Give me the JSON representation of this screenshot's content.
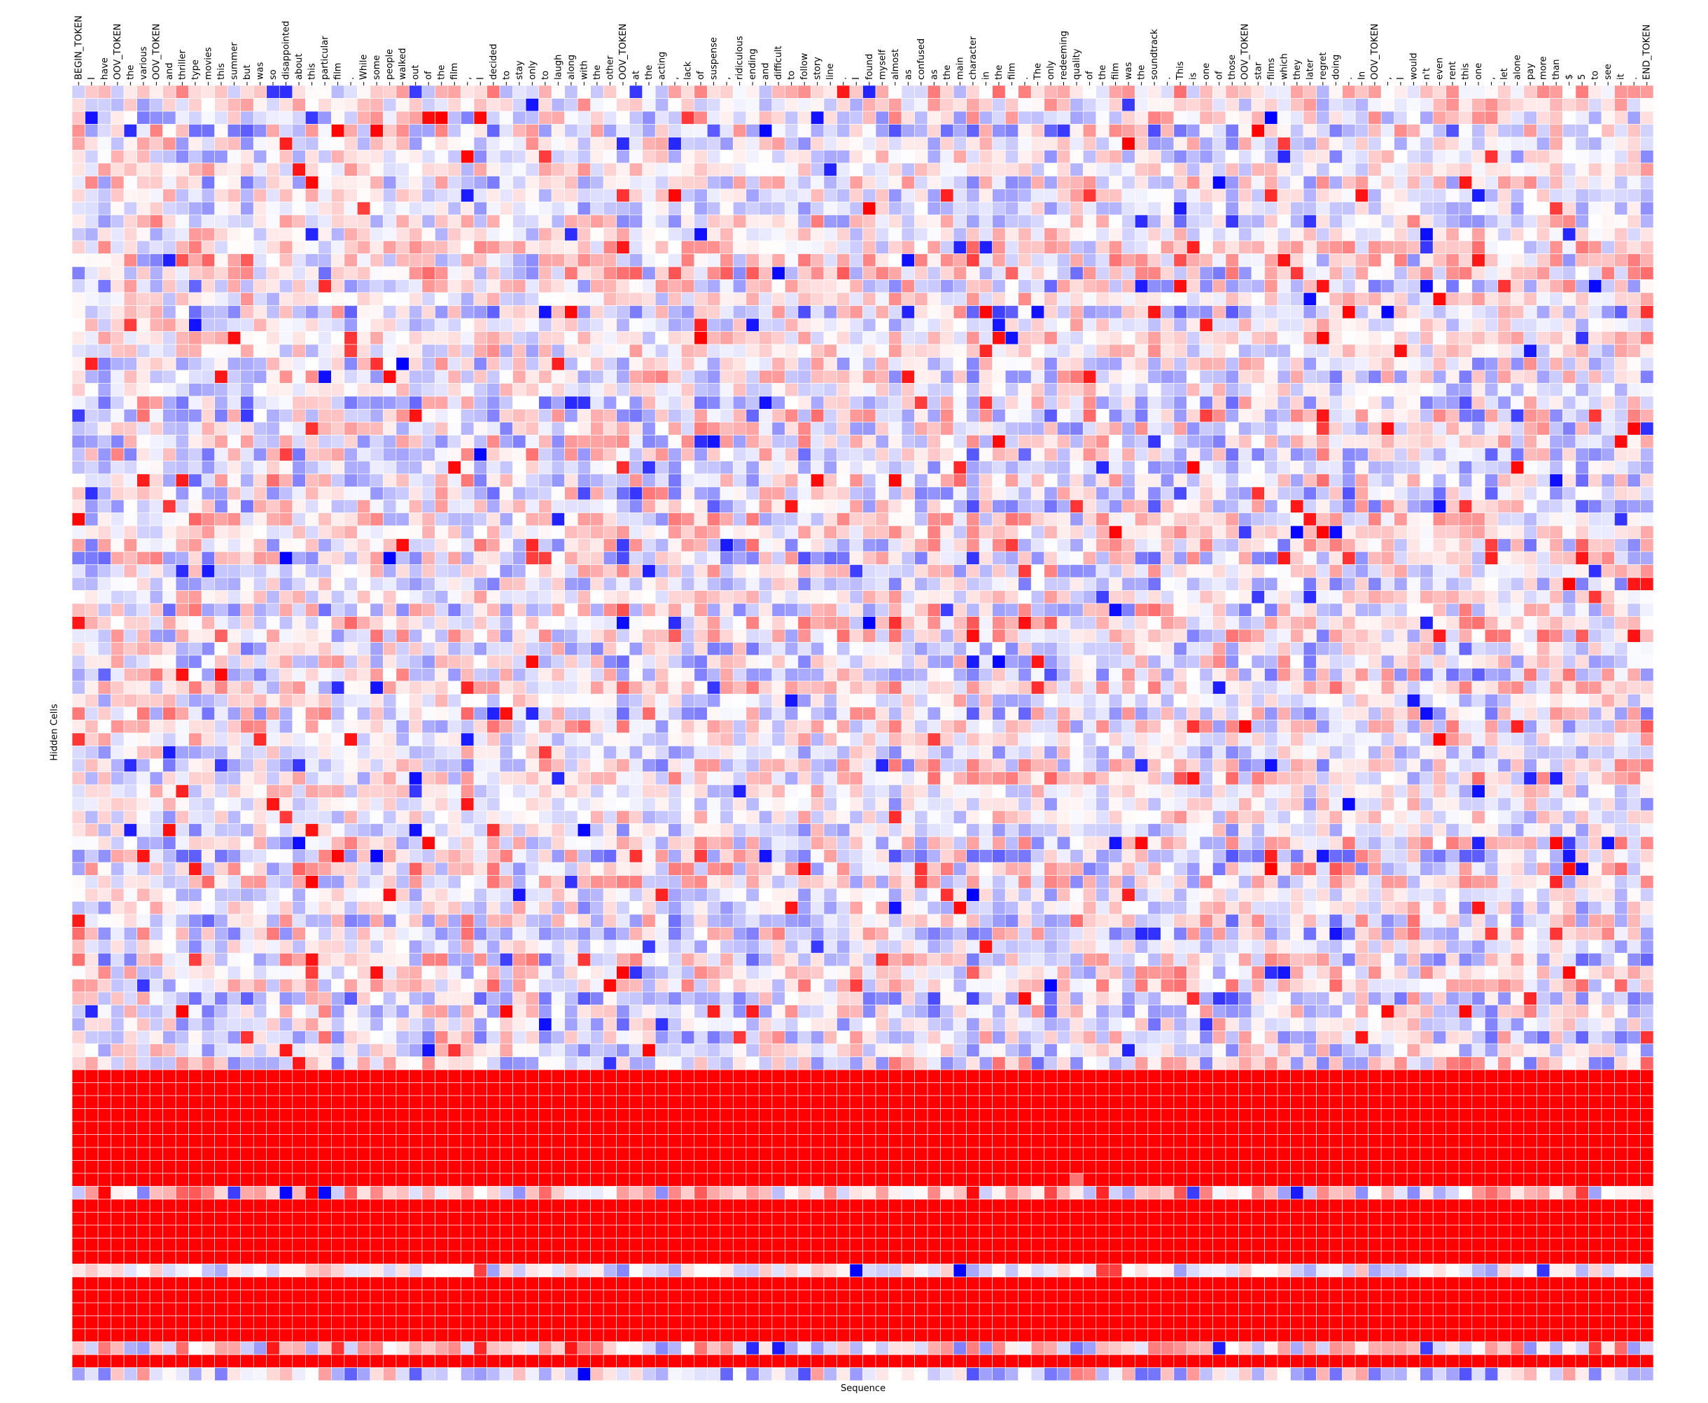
{
  "chart_data": {
    "type": "heatmap",
    "xlabel": "Sequence",
    "ylabel": "Hidden Cells",
    "colormap": "bwr",
    "colors": {
      "negative": "#0000ff",
      "zero": "#ffffff",
      "positive": "#ff0000"
    },
    "value_range": [
      -1,
      1
    ],
    "row_count": 100,
    "x_tokens": [
      "BEGIN_TOKEN",
      "I",
      "have",
      "OOV_TOKEN",
      "the",
      "various",
      "OOV_TOKEN",
      "and",
      "thriller",
      "type",
      "movies",
      "this",
      "summer",
      "but",
      "was",
      "so",
      "disappointed",
      "about",
      "this",
      "particular",
      "film",
      ".",
      "While",
      "some",
      "people",
      "walked",
      "out",
      "of",
      "the",
      "film",
      ",",
      "I",
      "decided",
      "to",
      "stay",
      "only",
      "to",
      "laugh",
      "along",
      "with",
      "the",
      "other",
      "OOV_TOKEN",
      "at",
      "the",
      "acting",
      ",",
      "lack",
      "of",
      "suspense",
      ",",
      "ridiculous",
      "ending",
      "and",
      "difficult",
      "to",
      "follow",
      "story",
      "line",
      ".",
      "I",
      "found",
      "myself",
      "almost",
      "as",
      "confused",
      "as",
      "the",
      "main",
      "character",
      "in",
      "the",
      "film",
      ".",
      "The",
      "only",
      "redeeming",
      "quality",
      "of",
      "the",
      "film",
      "was",
      "the",
      "soundtrack",
      ".",
      "This",
      "is",
      "one",
      "of",
      "those",
      "OOV_TOKEN",
      "star",
      "films",
      "which",
      "they",
      "later",
      "regret",
      "doing",
      ".",
      "In",
      "OOV_TOKEN",
      ",",
      "I",
      "would",
      "n't",
      "even",
      "rent",
      "this",
      "one",
      ",",
      "let",
      "alone",
      "pay",
      "more",
      "than",
      "$",
      "5",
      "to",
      "see",
      "it",
      ".",
      "END_TOKEN"
    ],
    "row_bands": [
      {
        "rows": "76-84",
        "value": 1.0,
        "note": "saturated positive"
      },
      {
        "rows": "86-90",
        "value": 1.0,
        "note": "saturated positive"
      },
      {
        "rows": "92-96",
        "value": 1.0,
        "note": "saturated positive"
      },
      {
        "rows": "98",
        "value": 1.0,
        "note": "saturated positive"
      }
    ]
  }
}
